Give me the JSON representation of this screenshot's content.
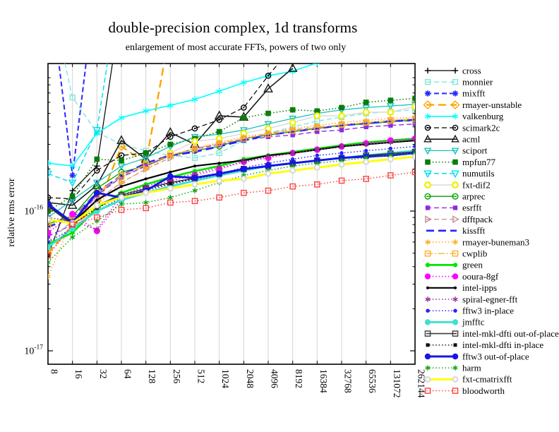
{
  "chart_data": {
    "type": "line",
    "title": "double-precision complex, 1d transforms",
    "subtitle": "enlargement of most accurate FFTs, powers of two only",
    "ylabel": "relative rms error",
    "x_scale": "log2",
    "y_scale": "log10",
    "grid": "vertical-only",
    "legend_position": "right",
    "x_ticks": [
      "8",
      "16",
      "32",
      "64",
      "128",
      "256",
      "512",
      "1024",
      "2048",
      "4096",
      "8192",
      "16384",
      "32768",
      "65536",
      "131072",
      "262144"
    ],
    "x_values": [
      8,
      16,
      32,
      64,
      128,
      256,
      512,
      1024,
      2048,
      4096,
      8192,
      16384,
      32768,
      65536,
      131072,
      262144
    ],
    "y_ticks": [
      {
        "value": 1e-16,
        "base": "10",
        "exp": "-16"
      },
      {
        "value": 1e-17,
        "base": "10",
        "exp": "-17"
      }
    ],
    "ylim": [
      8e-18,
      1.15e-15
    ],
    "series": [
      {
        "name": "cross",
        "color": "#000000",
        "line": "solid",
        "width": 1.2,
        "marker": "plus",
        "msize": 4.2,
        "values": [
          4.8e-17,
          1.4e-16,
          2.1e-16,
          3e-15,
          null,
          null,
          null,
          null,
          null,
          null,
          null,
          null,
          null,
          null,
          null,
          null
        ]
      },
      {
        "name": "monnier",
        "color": "#7FE7DA",
        "line": "dashed",
        "width": 1.4,
        "marker": "square_open",
        "msize": 3.4,
        "values": [
          4e-15,
          6.5e-16,
          3.65e-16,
          3e-16,
          2.7e-16,
          2.5e-16,
          2.4e-16,
          2.6e-16,
          3.2e-16,
          3.6e-16,
          4e-16,
          4.4e-16,
          4.7e-16,
          5e-16,
          5.15e-16,
          5.3e-16
        ]
      },
      {
        "name": "mixfft",
        "color": "#2929FF",
        "line": "dashed",
        "width": 2.0,
        "marker": "star",
        "msize": 4.2,
        "values": [
          5e-15,
          1.8e-16,
          5e-15,
          null,
          null,
          null,
          null,
          null,
          null,
          null,
          null,
          null,
          null,
          null,
          null,
          null
        ]
      },
      {
        "name": "rmayer-unstable",
        "color": "#FFA500",
        "line": "longdash",
        "width": 2.4,
        "marker": "diamond_open",
        "msize": 4.2,
        "values": [
          5e-17,
          7.9e-17,
          1.05e-16,
          2.9e-16,
          2.2e-16,
          2e-15,
          null,
          null,
          null,
          null,
          null,
          null,
          null,
          null,
          null,
          null
        ]
      },
      {
        "name": "valkenburg",
        "color": "#00FFFF",
        "line": "solid",
        "width": 1.6,
        "marker": "asterisk",
        "msize": 4.5,
        "values": [
          2.2e-16,
          2.1e-16,
          3.6e-16,
          4.65e-16,
          5.2e-16,
          5.7e-16,
          6.3e-16,
          7.2e-16,
          8.3e-16,
          9.3e-16,
          1e-15,
          1.15e-15,
          null,
          null,
          null,
          null
        ]
      },
      {
        "name": "scimark2c",
        "color": "#000000",
        "line": "dashed",
        "width": 1.2,
        "marker": "circle_dot",
        "msize": 3.6,
        "values": [
          1.25e-16,
          1.22e-16,
          1.95e-16,
          2.5e-16,
          2.6e-16,
          3.4e-16,
          3.9e-16,
          4.5e-16,
          5.5e-16,
          9.3e-16,
          1.5e-15,
          null,
          null,
          null,
          null,
          null
        ]
      },
      {
        "name": "acml",
        "color": "#1A1A1A",
        "line": "solid",
        "width": 1.6,
        "marker": "triangle_open",
        "msize": 5.2,
        "values": [
          1.15e-16,
          1.1e-16,
          1.53e-16,
          3.2e-16,
          2.35e-16,
          3.65e-16,
          3e-16,
          4.8e-16,
          4.7e-16,
          7.5e-16,
          1.05e-15,
          null,
          null,
          null,
          null,
          null
        ]
      },
      {
        "name": "sciport",
        "color": "#17C3BB",
        "line": "solid",
        "width": 1.3,
        "marker": "tridown_open",
        "msize": 3.8,
        "values": [
          9e-17,
          1.2e-16,
          1.6e-16,
          2.1e-16,
          2.4e-16,
          2.9e-16,
          3.4e-16,
          3.55e-16,
          3.8e-16,
          4.2e-16,
          4.6e-16,
          5e-16,
          5.3e-16,
          5.5e-16,
          5.65e-16,
          5.8e-16
        ]
      },
      {
        "name": "mpfun77",
        "color": "#0A7D0A",
        "line": "dotted",
        "width": 1.5,
        "marker": "square_filled",
        "msize": 3.8,
        "values": [
          1e-16,
          1.28e-16,
          2.35e-16,
          2.3e-16,
          2.6e-16,
          3e-16,
          3.3e-16,
          3.7e-16,
          4.65e-16,
          5e-16,
          5.3e-16,
          5.2e-16,
          5.5e-16,
          6e-16,
          6.2e-16,
          6.4e-16
        ]
      },
      {
        "name": "numutils",
        "color": "#00E0F0",
        "line": "dashed",
        "width": 1.5,
        "marker": "tridown_open",
        "msize": 4.2,
        "values": [
          1.85e-16,
          1.6e-16,
          3.8e-16,
          5e-15,
          null,
          null,
          null,
          null,
          null,
          null,
          null,
          null,
          null,
          null,
          null,
          null
        ]
      },
      {
        "name": "fxt-dif2",
        "color": "#D9D9D9",
        "line": "solid",
        "width": 1.4,
        "marker": "ring",
        "mcolor": "#F0F000",
        "msize": 3.8,
        "values": [
          8.7e-17,
          8.4e-17,
          1.3e-16,
          1.75e-16,
          2.1e-16,
          2.6e-16,
          3.15e-16,
          3.3e-16,
          3.6e-16,
          3.9e-16,
          4.3e-16,
          4.8e-16,
          4.8e-16,
          5.1e-16,
          5.1e-16,
          5.6e-16
        ]
      },
      {
        "name": "arprec",
        "color": "#00A000",
        "line": "solid",
        "width": 1.3,
        "marker": "circle_open",
        "msize": 3.8,
        "values": [
          8.1e-17,
          9.2e-17,
          1.45e-16,
          1.9e-16,
          2.1e-16,
          2.5e-16,
          2.7e-16,
          2.9e-16,
          3.3e-16,
          3.5e-16,
          3.7e-16,
          3.9e-16,
          4.1e-16,
          4.2e-16,
          4.35e-16,
          4.5e-16
        ]
      },
      {
        "name": "esrfft",
        "color": "#8A2BE2",
        "line": "dashed",
        "width": 1.4,
        "marker": "square_filled",
        "msize": 3.2,
        "values": [
          6.6e-17,
          8e-17,
          1.3e-16,
          1.75e-16,
          2.1e-16,
          2.5e-16,
          2.8e-16,
          3e-16,
          3.2e-16,
          3.4e-16,
          3.5e-16,
          3.7e-16,
          3.8e-16,
          4e-16,
          4.1e-16,
          4.2e-16
        ]
      },
      {
        "name": "dfftpack",
        "color": "#C49191",
        "line": "dashed",
        "width": 1.3,
        "marker": "triright_open",
        "msize": 3.8,
        "values": [
          6e-17,
          8.5e-17,
          1.2e-16,
          1.6e-16,
          2e-16,
          2.4e-16,
          2.7e-16,
          3e-16,
          3.3e-16,
          3.6e-16,
          3.8e-16,
          4e-16,
          4.1e-16,
          4.25e-16,
          4.35e-16,
          4.4e-16
        ]
      },
      {
        "name": "kissfft",
        "color": "#2121FF",
        "line": "longdash",
        "width": 2.6,
        "marker": "none",
        "msize": 0,
        "values": [
          7.7e-17,
          9e-17,
          1.35e-16,
          1.8e-16,
          2.2e-16,
          2.5e-16,
          2.65e-16,
          2.9e-16,
          3.2e-16,
          3.5e-16,
          3.7e-16,
          3.9e-16,
          4.1e-16,
          4.25e-16,
          4.4e-16,
          4.5e-16
        ]
      },
      {
        "name": "rmayer-buneman3",
        "color": "#FFA81E",
        "line": "dotted",
        "width": 1.4,
        "marker": "asterisk",
        "msize": 3.8,
        "values": [
          3.4e-17,
          8.8e-17,
          1.1e-16,
          1.6e-16,
          2e-16,
          2.5e-16,
          2.8e-16,
          3.1e-16,
          3.4e-16,
          3.6e-16,
          3.9e-16,
          4.1e-16,
          4.3e-16,
          4.45e-16,
          4.6e-16,
          4.7e-16
        ]
      },
      {
        "name": "cwplib",
        "color": "#FFAE2A",
        "line": "dashdot",
        "width": 1.4,
        "marker": "square_open",
        "msize": 3.6,
        "values": [
          7.9e-17,
          9e-17,
          1.35e-16,
          1.8e-16,
          2.15e-16,
          2.5e-16,
          2.8e-16,
          3.05e-16,
          3.3e-16,
          3.55e-16,
          3.75e-16,
          3.95e-16,
          4.15e-16,
          4.3e-16,
          4.45e-16,
          4.6e-16
        ]
      },
      {
        "name": "green",
        "color": "#00E500",
        "line": "solid",
        "width": 2.7,
        "marker": "circle_filled",
        "msize": 3.2,
        "values": [
          5.8e-17,
          7e-17,
          1.05e-16,
          1.35e-16,
          1.55e-16,
          1.75e-16,
          1.93e-16,
          2.1e-16,
          2.35e-16,
          2.5e-16,
          2.65e-16,
          2.8e-16,
          2.95e-16,
          3.1e-16,
          3.2e-16,
          3.3e-16
        ]
      },
      {
        "name": "ooura-8gf",
        "color": "#FF00FF",
        "line": "dotted",
        "width": 1.5,
        "marker": "circle_filled",
        "msize": 4.6,
        "values": [
          7e-17,
          9.5e-17,
          7.2e-17,
          1.2e-16,
          1.45e-16,
          1.65e-16,
          1.8e-16,
          2e-16,
          2.25e-16,
          2.4e-16,
          2.6e-16,
          2.75e-16,
          2.9e-16,
          3.05e-16,
          3.2e-16,
          3.3e-16
        ]
      },
      {
        "name": "intel-ipps",
        "color": "#000000",
        "line": "solid",
        "width": 2.2,
        "marker": "dot",
        "msize": 2.0,
        "values": [
          1.1e-16,
          8.2e-17,
          1.2e-16,
          1.5e-16,
          1.7e-16,
          1.9e-16,
          2.1e-16,
          2.2e-16,
          2.3e-16,
          2.5e-16,
          2.6e-16,
          2.75e-16,
          2.9e-16,
          3e-16,
          3.1e-16,
          3.2e-16
        ]
      },
      {
        "name": "spiral-egner-fft",
        "color": "#993299",
        "line": "dotted",
        "width": 1.4,
        "marker": "asterisk",
        "msize": 3.8,
        "values": [
          9e-17,
          8.5e-17,
          7.4e-17,
          1.3e-16,
          1.5e-16,
          1.7e-16,
          1.85e-16,
          2.05e-16,
          2.25e-16,
          2.45e-16,
          2.6e-16,
          2.75e-16,
          2.9e-16,
          3e-16,
          3.1e-16,
          3.25e-16
        ]
      },
      {
        "name": "fftw3 in-place",
        "color": "#2424FF",
        "line": "dotted",
        "width": 1.4,
        "marker": "circle_filled",
        "msize": 2.7,
        "values": [
          6e-17,
          7.5e-17,
          1e-16,
          1.25e-16,
          1.4e-16,
          1.55e-16,
          1.7e-16,
          1.85e-16,
          2.05e-16,
          2.2e-16,
          2.35e-16,
          2.5e-16,
          2.6e-16,
          2.7e-16,
          2.8e-16,
          2.9e-16
        ]
      },
      {
        "name": "jmfftc",
        "color": "#40E0D0",
        "line": "solid",
        "width": 2.9,
        "marker": "circle_filled",
        "msize": 4.4,
        "values": [
          5.5e-17,
          7.5e-17,
          1e-16,
          1.2e-16,
          1.35e-16,
          1.5e-16,
          1.65e-16,
          1.8e-16,
          1.95e-16,
          2.1e-16,
          2.2e-16,
          2.3e-16,
          2.4e-16,
          2.5e-16,
          2.6e-16,
          2.7e-16
        ]
      },
      {
        "name": "intel-mkl-dfti out-of-place",
        "color": "#3D3D3D",
        "line": "solid",
        "width": 1.6,
        "marker": "square_open",
        "msize": 3.6,
        "values": [
          1.08e-16,
          8e-17,
          1.1e-16,
          1.3e-16,
          1.45e-16,
          1.6e-16,
          1.72e-16,
          1.85e-16,
          2e-16,
          2.1e-16,
          2.2e-16,
          2.3e-16,
          2.4e-16,
          2.5e-16,
          2.58e-16,
          2.65e-16
        ]
      },
      {
        "name": "intel-mkl-dfti in-place",
        "color": "#111111",
        "line": "dotted",
        "width": 1.4,
        "marker": "square_filled",
        "msize": 2.5,
        "values": [
          4.8e-17,
          8e-17,
          1.05e-16,
          1.28e-16,
          1.42e-16,
          1.58e-16,
          1.7e-16,
          1.83e-16,
          1.98e-16,
          2.08e-16,
          2.18e-16,
          2.28e-16,
          2.38e-16,
          2.46e-16,
          2.54e-16,
          2.6e-16
        ]
      },
      {
        "name": "fftw3 out-of-place",
        "color": "#1515E8",
        "line": "solid",
        "width": 2.9,
        "marker": "circle_filled",
        "msize": 4.4,
        "values": [
          1.12e-16,
          8.3e-17,
          1.35e-16,
          1.25e-16,
          1.4e-16,
          1.77e-16,
          1.73e-16,
          1.85e-16,
          2e-16,
          2.1e-16,
          2.2e-16,
          2.3e-16,
          2.4e-16,
          2.45e-16,
          2.5e-16,
          2.6e-16
        ]
      },
      {
        "name": "harm",
        "color": "#0EA50E",
        "line": "dotted",
        "width": 1.4,
        "marker": "asterisk",
        "msize": 3.6,
        "values": [
          4.3e-17,
          6.5e-17,
          8.5e-17,
          1.12e-16,
          1.15e-16,
          1.25e-16,
          1.4e-16,
          1.6e-16,
          1.8e-16,
          1.95e-16,
          2.1e-16,
          2.2e-16,
          2.3e-16,
          2.4e-16,
          2.5e-16,
          2.6e-16
        ]
      },
      {
        "name": "fxt-cmatrixfft",
        "color": "#FFFF00",
        "line": "solid",
        "width": 2.9,
        "marker": "ring",
        "mcolor": "#DADADA",
        "msize": 3.4,
        "values": [
          8.7e-17,
          8.2e-17,
          1.1e-16,
          1.25e-16,
          1.35e-16,
          1.45e-16,
          1.55e-16,
          1.65e-16,
          1.7e-16,
          1.85e-16,
          1.95e-16,
          2.05e-16,
          2.15e-16,
          2.25e-16,
          2.35e-16,
          2.45e-16
        ]
      },
      {
        "name": "bloodworth",
        "color": "#FF4040",
        "line": "dotted",
        "width": 1.4,
        "marker": "square_open",
        "msize": 3.6,
        "values": [
          4.8e-17,
          8e-17,
          9e-17,
          1.02e-16,
          1.05e-16,
          1.15e-16,
          1.18e-16,
          1.25e-16,
          1.35e-16,
          1.4e-16,
          1.5e-16,
          1.55e-16,
          1.65e-16,
          1.7e-16,
          1.8e-16,
          1.9e-16
        ]
      }
    ]
  }
}
